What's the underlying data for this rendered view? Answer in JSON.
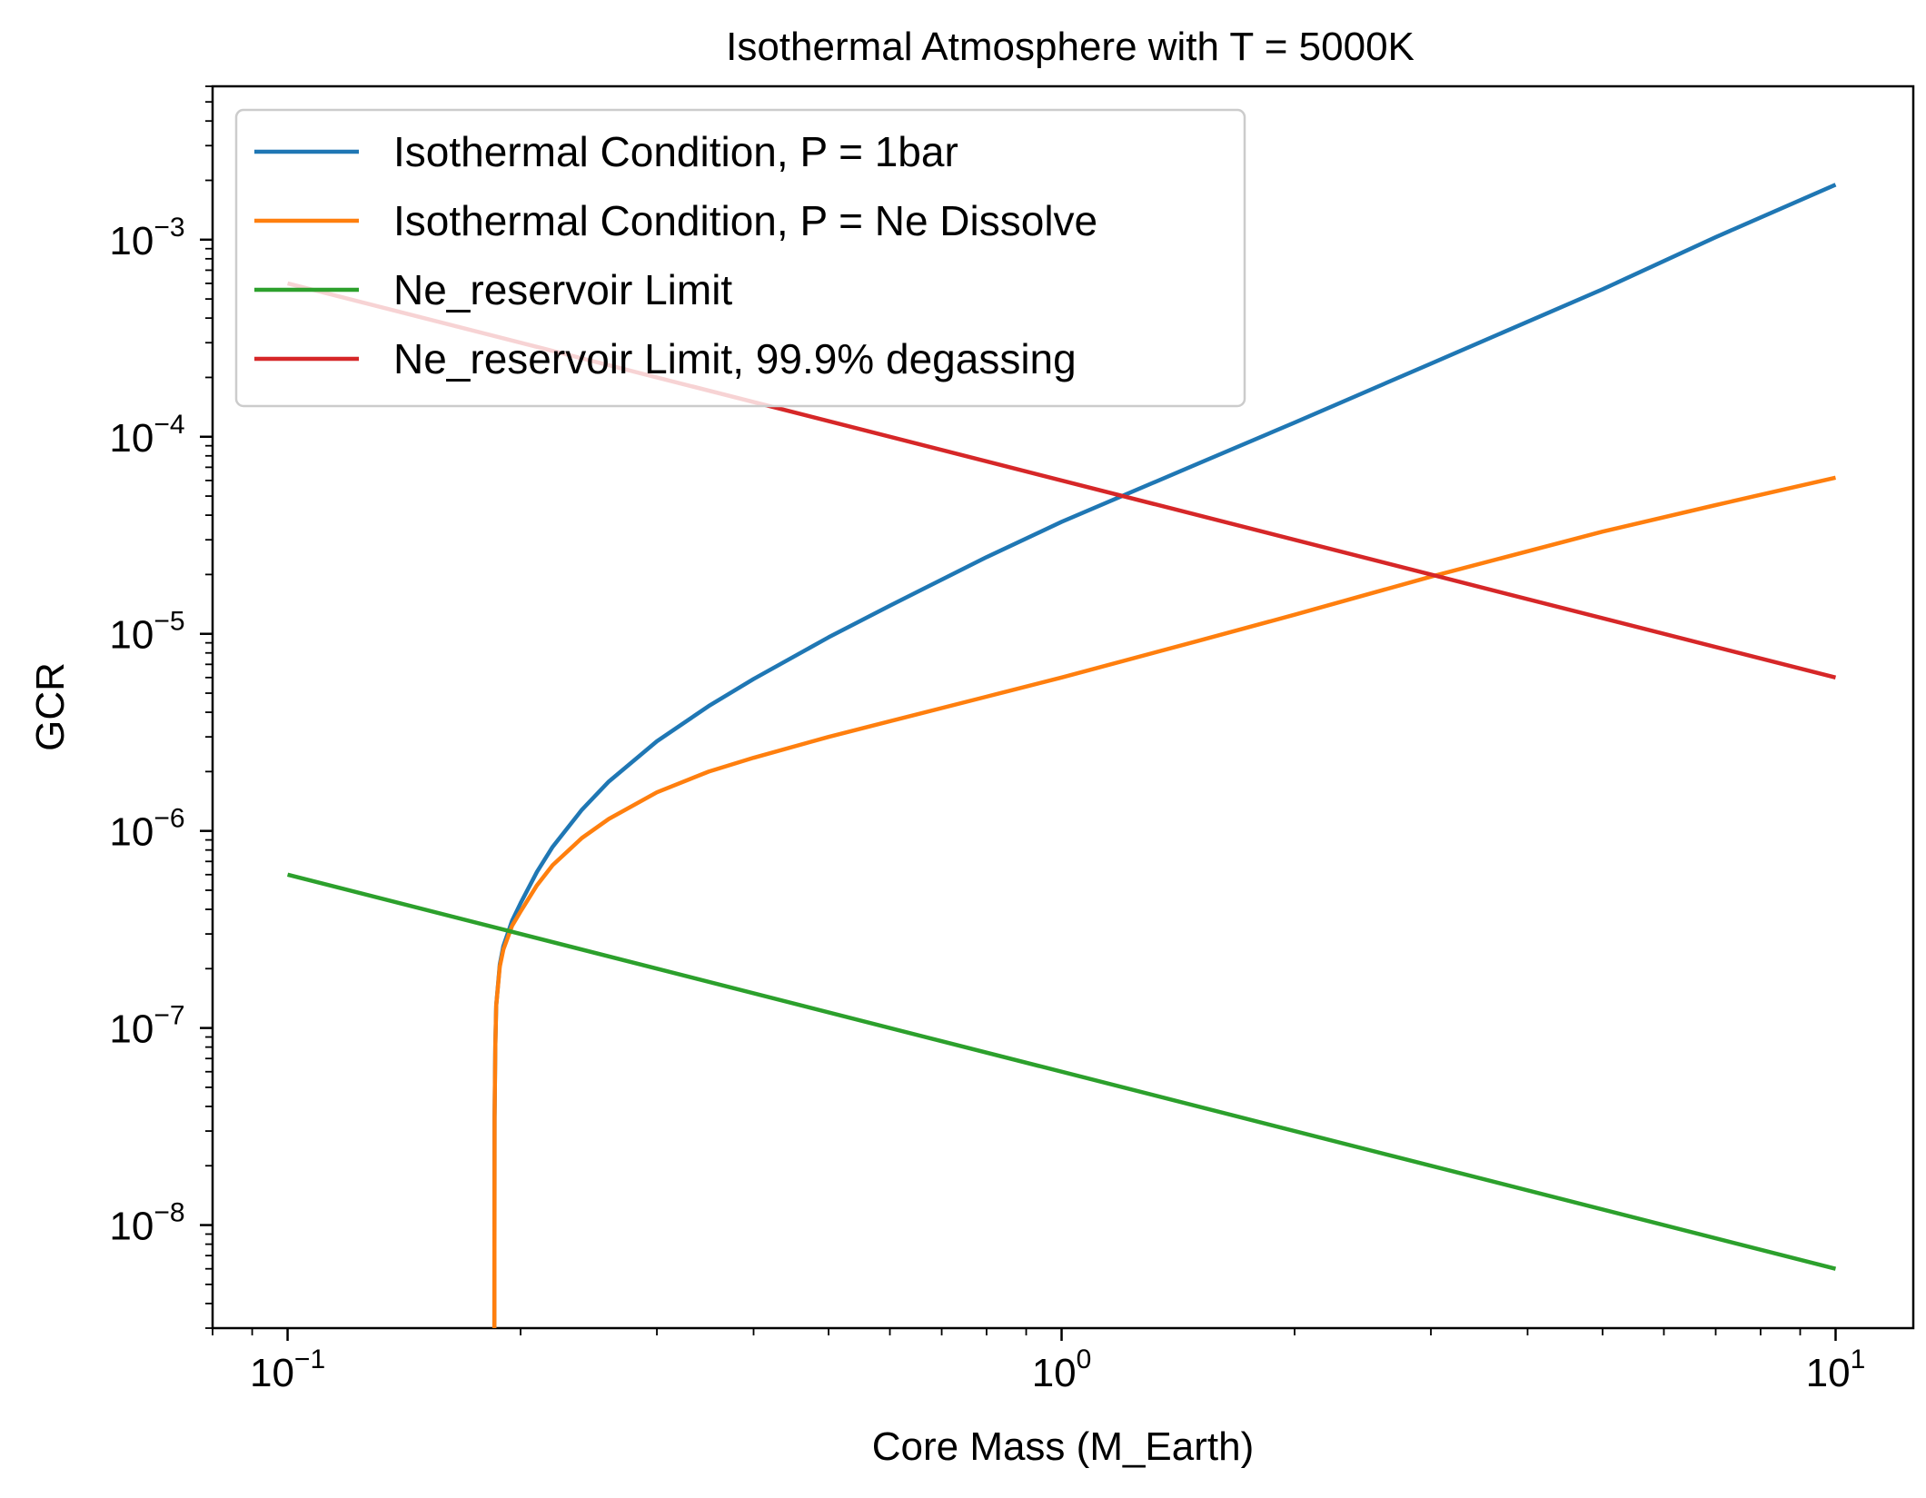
{
  "chart_data": {
    "type": "line",
    "title": "Isothermal Atmosphere with T = 5000K",
    "xlabel": "Core Mass (M_Earth)",
    "ylabel": "GCR",
    "xscale": "log",
    "yscale": "log",
    "xlim": [
      0.08,
      12.6
    ],
    "ylim": [
      3e-09,
      0.006
    ],
    "grid": false,
    "legend_position": "top-left",
    "x_ticks": [
      {
        "value": 0.1,
        "base": "10",
        "exp": "−1"
      },
      {
        "value": 1,
        "base": "10",
        "exp": "0"
      },
      {
        "value": 10,
        "base": "10",
        "exp": "1"
      }
    ],
    "y_ticks": [
      {
        "value": 1e-08,
        "base": "10",
        "exp": "−8"
      },
      {
        "value": 1e-07,
        "base": "10",
        "exp": "−7"
      },
      {
        "value": 1e-06,
        "base": "10",
        "exp": "−6"
      },
      {
        "value": 1e-05,
        "base": "10",
        "exp": "−5"
      },
      {
        "value": 0.0001,
        "base": "10",
        "exp": "−4"
      },
      {
        "value": 0.001,
        "base": "10",
        "exp": "−3"
      }
    ],
    "series": [
      {
        "name": "Isothermal Condition, P = 1bar",
        "color": "#1f77b4",
        "x": [
          0.185,
          0.1851,
          0.1855,
          0.186,
          0.188,
          0.19,
          0.195,
          0.2,
          0.21,
          0.22,
          0.24,
          0.26,
          0.3,
          0.35,
          0.4,
          0.5,
          0.6,
          0.8,
          1.0,
          1.5,
          2,
          3,
          5,
          7,
          10
        ],
        "y": [
          3e-09,
          3.5e-08,
          8e-08,
          1.3e-07,
          2.1e-07,
          2.6e-07,
          3.5e-07,
          4.3e-07,
          6.2e-07,
          8.3e-07,
          1.28e-06,
          1.78e-06,
          2.85e-06,
          4.3e-06,
          5.9e-06,
          9.6e-06,
          1.39e-05,
          2.45e-05,
          3.7e-05,
          7.3e-05,
          0.000118,
          0.000235,
          0.00056,
          0.00103,
          0.0019
        ]
      },
      {
        "name": "Isothermal Condition, P = Ne Dissolve",
        "color": "#ff7f0e",
        "x": [
          0.185,
          0.1851,
          0.1855,
          0.186,
          0.188,
          0.19,
          0.195,
          0.2,
          0.21,
          0.22,
          0.24,
          0.26,
          0.3,
          0.35,
          0.4,
          0.5,
          0.6,
          0.8,
          1.0,
          1.5,
          2,
          3,
          5,
          7,
          10
        ],
        "y": [
          3e-09,
          3.5e-08,
          8e-08,
          1.3e-07,
          2.05e-07,
          2.5e-07,
          3.3e-07,
          3.9e-07,
          5.3e-07,
          6.7e-07,
          9.2e-07,
          1.15e-06,
          1.57e-06,
          2e-06,
          2.35e-06,
          3e-06,
          3.6e-06,
          4.8e-06,
          6e-06,
          9.2e-06,
          1.25e-05,
          1.95e-05,
          3.3e-05,
          4.5e-05,
          6.2e-05
        ]
      },
      {
        "name": "Ne_reservoir Limit",
        "color": "#2ca02c",
        "x": [
          0.1,
          10
        ],
        "y": [
          6e-07,
          6e-09
        ]
      },
      {
        "name": "Ne_reservoir Limit, 99.9% degassing",
        "color": "#d62728",
        "x": [
          0.1,
          10
        ],
        "y": [
          0.0006,
          6e-06
        ]
      }
    ]
  }
}
